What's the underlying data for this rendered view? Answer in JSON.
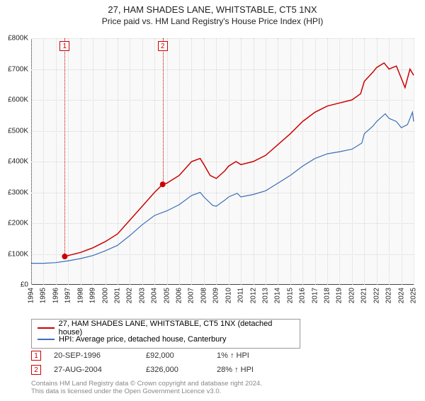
{
  "title": "27, HAM SHADES LANE, WHITSTABLE, CT5 1NX",
  "subtitle": "Price paid vs. HM Land Registry's House Price Index (HPI)",
  "chart": {
    "type": "line",
    "background_color": "#f9f9f9",
    "grid_color": "#d6d6d6",
    "axis_color": "#444444",
    "xlim": [
      1994,
      2025
    ],
    "ylim": [
      0,
      800000
    ],
    "ytick_step": 100000,
    "yticks": [
      "£0",
      "£100K",
      "£200K",
      "£300K",
      "£400K",
      "£500K",
      "£600K",
      "£700K",
      "£800K"
    ],
    "xticks": [
      "1994",
      "1995",
      "1996",
      "1997",
      "1998",
      "1999",
      "2000",
      "2001",
      "2002",
      "2003",
      "2004",
      "2005",
      "2006",
      "2007",
      "2008",
      "2009",
      "2010",
      "2011",
      "2012",
      "2013",
      "2014",
      "2015",
      "2016",
      "2017",
      "2018",
      "2019",
      "2020",
      "2021",
      "2022",
      "2023",
      "2024",
      "2025"
    ],
    "title_fontsize": 13,
    "subtitle_fontsize": 12,
    "axis_label_fontsize": 10,
    "series": [
      {
        "name": "property",
        "label": "27, HAM SHADES LANE, WHITSTABLE, CT5 1NX (detached house)",
        "color": "#cc0000",
        "line_width": 1.5,
        "points": [
          [
            1996.72,
            92000
          ],
          [
            1997,
            95000
          ],
          [
            1998,
            105000
          ],
          [
            1999,
            120000
          ],
          [
            2000,
            140000
          ],
          [
            2001,
            165000
          ],
          [
            2002,
            210000
          ],
          [
            2003,
            255000
          ],
          [
            2004,
            300000
          ],
          [
            2004.66,
            326000
          ],
          [
            2005,
            330000
          ],
          [
            2006,
            355000
          ],
          [
            2007,
            400000
          ],
          [
            2007.7,
            410000
          ],
          [
            2008,
            390000
          ],
          [
            2008.5,
            355000
          ],
          [
            2009,
            345000
          ],
          [
            2009.7,
            370000
          ],
          [
            2010,
            385000
          ],
          [
            2010.6,
            400000
          ],
          [
            2011,
            390000
          ],
          [
            2012,
            400000
          ],
          [
            2013,
            420000
          ],
          [
            2014,
            455000
          ],
          [
            2015,
            490000
          ],
          [
            2016,
            530000
          ],
          [
            2017,
            560000
          ],
          [
            2018,
            580000
          ],
          [
            2019,
            590000
          ],
          [
            2020,
            600000
          ],
          [
            2020.7,
            620000
          ],
          [
            2021,
            660000
          ],
          [
            2021.7,
            690000
          ],
          [
            2022,
            705000
          ],
          [
            2022.6,
            720000
          ],
          [
            2023,
            700000
          ],
          [
            2023.6,
            710000
          ],
          [
            2024,
            670000
          ],
          [
            2024.3,
            640000
          ],
          [
            2024.7,
            700000
          ],
          [
            2025,
            680000
          ]
        ]
      },
      {
        "name": "hpi",
        "label": "HPI: Average price, detached house, Canterbury",
        "color": "#3b6fb6",
        "line_width": 1.2,
        "points": [
          [
            1994,
            70000
          ],
          [
            1995,
            70000
          ],
          [
            1996,
            72000
          ],
          [
            1997,
            78000
          ],
          [
            1998,
            85000
          ],
          [
            1999,
            95000
          ],
          [
            2000,
            110000
          ],
          [
            2001,
            128000
          ],
          [
            2002,
            160000
          ],
          [
            2003,
            195000
          ],
          [
            2004,
            225000
          ],
          [
            2005,
            240000
          ],
          [
            2006,
            260000
          ],
          [
            2007,
            290000
          ],
          [
            2007.7,
            300000
          ],
          [
            2008,
            285000
          ],
          [
            2008.7,
            258000
          ],
          [
            2009,
            255000
          ],
          [
            2009.7,
            275000
          ],
          [
            2010,
            285000
          ],
          [
            2010.7,
            297000
          ],
          [
            2011,
            285000
          ],
          [
            2012,
            293000
          ],
          [
            2013,
            305000
          ],
          [
            2014,
            330000
          ],
          [
            2015,
            355000
          ],
          [
            2016,
            385000
          ],
          [
            2017,
            410000
          ],
          [
            2018,
            425000
          ],
          [
            2019,
            432000
          ],
          [
            2020,
            440000
          ],
          [
            2020.8,
            460000
          ],
          [
            2021,
            490000
          ],
          [
            2021.7,
            515000
          ],
          [
            2022,
            530000
          ],
          [
            2022.7,
            555000
          ],
          [
            2023,
            540000
          ],
          [
            2023.6,
            530000
          ],
          [
            2024,
            510000
          ],
          [
            2024.5,
            520000
          ],
          [
            2024.9,
            560000
          ],
          [
            2025,
            530000
          ]
        ]
      }
    ],
    "markers": [
      {
        "n": "1",
        "x": 1996.72,
        "y": 92000
      },
      {
        "n": "2",
        "x": 2004.66,
        "y": 326000
      }
    ],
    "marker_border_color": "#cc0000",
    "marker_text_color": "#cc0000",
    "marker_dot_fill": "#cc0000"
  },
  "legend": {
    "border_color": "#999999",
    "fontsize": 11
  },
  "transactions": [
    {
      "n": "1",
      "date": "20-SEP-1996",
      "price": "£92,000",
      "pct": "1% ↑ HPI"
    },
    {
      "n": "2",
      "date": "27-AUG-2004",
      "price": "£326,000",
      "pct": "28% ↑ HPI"
    }
  ],
  "footer_line1": "Contains HM Land Registry data © Crown copyright and database right 2024.",
  "footer_line2": "This data is licensed under the Open Government Licence v3.0."
}
